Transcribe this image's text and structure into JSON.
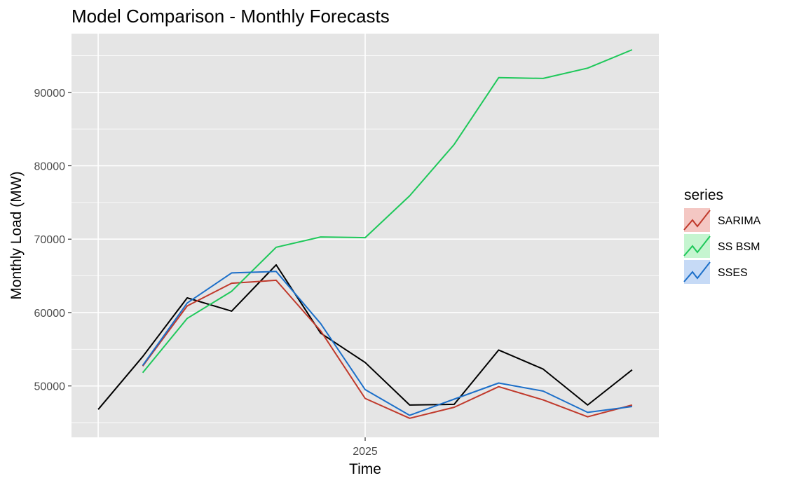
{
  "chart_data": {
    "type": "line",
    "title": "Model Comparison - Monthly Forecasts",
    "xlabel": "Time",
    "ylabel": "Monthly Load (MW)",
    "x_axis": {
      "tick_labels": [
        "2025"
      ],
      "tick_values": [
        6
      ],
      "range": [
        -0.6,
        12.6
      ]
    },
    "y_axis": {
      "ticks": [
        50000,
        60000,
        70000,
        80000,
        90000
      ],
      "tick_labels": [
        "50000",
        "60000",
        "70000",
        "80000",
        "90000"
      ],
      "range": [
        43000,
        98000
      ]
    },
    "grid": true,
    "background": "#e5e5e5",
    "legend": {
      "title": "series",
      "position": "right"
    },
    "actual": {
      "color": "#000000",
      "x": [
        0,
        1,
        2,
        3,
        4,
        5,
        6,
        7,
        8,
        9,
        10,
        11,
        12
      ],
      "values": [
        46800,
        54000,
        62000,
        60200,
        66500,
        57200,
        53200,
        47400,
        47500,
        54900,
        52300,
        47400,
        52200
      ]
    },
    "series": [
      {
        "name": "SARIMA",
        "color": "#c0392b",
        "swatch_fill": "#f4c7c3",
        "x": [
          1,
          2,
          3,
          4,
          5,
          6,
          7,
          8,
          9,
          10,
          11,
          12
        ],
        "values": [
          52700,
          60900,
          64000,
          64400,
          57500,
          48300,
          45600,
          47100,
          49900,
          48100,
          45800,
          47400
        ]
      },
      {
        "name": "SS BSM",
        "color": "#1ec85a",
        "swatch_fill": "#c5f5d0",
        "x": [
          1,
          2,
          3,
          4,
          5,
          6,
          7,
          8,
          9,
          10,
          11,
          12
        ],
        "values": [
          51800,
          59200,
          62900,
          68900,
          70300,
          70200,
          75900,
          82900,
          92000,
          91900,
          93300,
          95800
        ]
      },
      {
        "name": "SSES",
        "color": "#1c6fc9",
        "swatch_fill": "#c6daf6",
        "x": [
          1,
          2,
          3,
          4,
          5,
          6,
          7,
          8,
          9,
          10,
          11,
          12
        ],
        "values": [
          52800,
          61300,
          65400,
          65600,
          58500,
          49500,
          46000,
          48200,
          50400,
          49300,
          46400,
          47200
        ]
      }
    ]
  }
}
